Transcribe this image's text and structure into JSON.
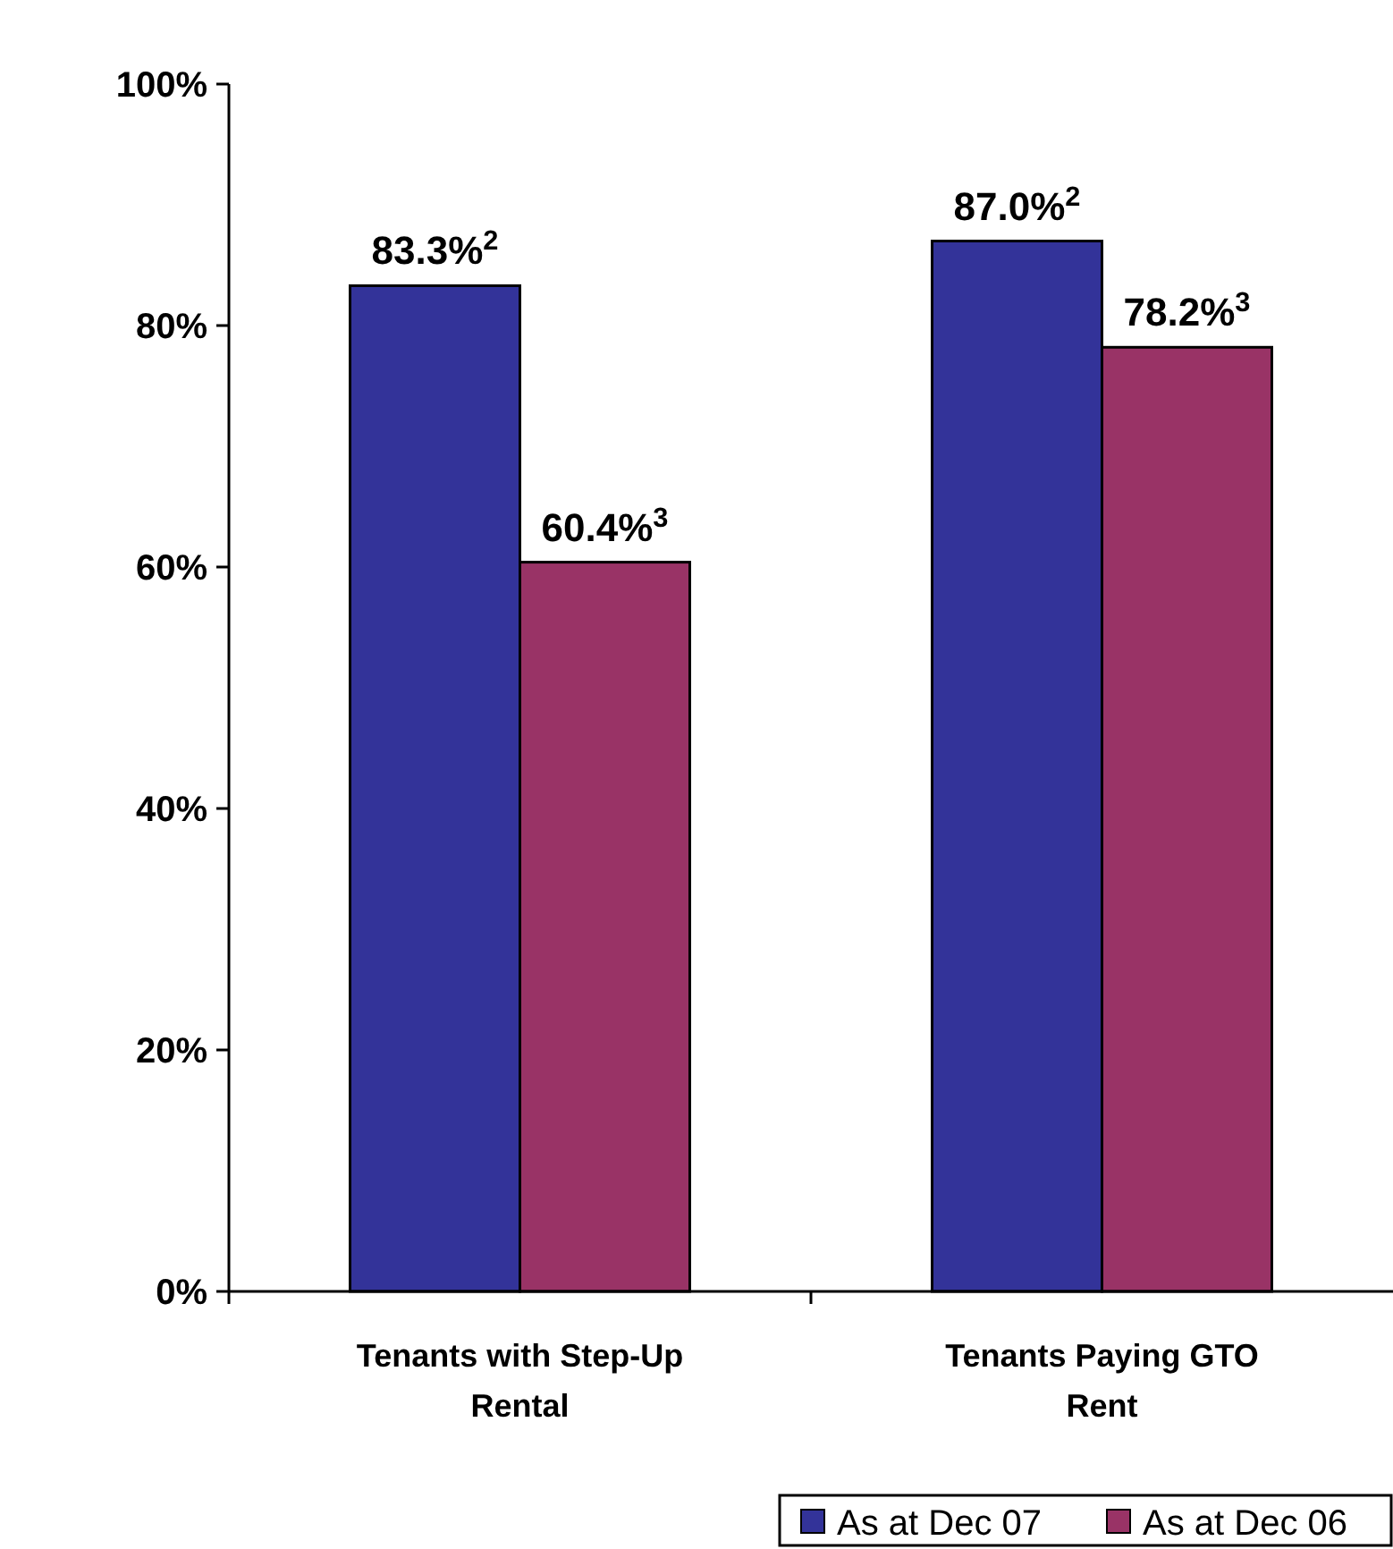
{
  "chart_data": {
    "type": "bar",
    "categories": [
      "Tenants with Step-Up Rental",
      "Tenants Paying GTO Rent"
    ],
    "series": [
      {
        "name": "As at Dec 07",
        "color": "#333399",
        "values": [
          83.3,
          87.0
        ],
        "value_labels": [
          "83.3%$^{2}$",
          "87.0%$^{2}$"
        ]
      },
      {
        "name": "As at Dec 06",
        "color": "#993366",
        "values": [
          60.4,
          78.2
        ],
        "value_labels": [
          "60.4%$^{3}$",
          "78.2%$^{3}$"
        ]
      }
    ],
    "ylim": [
      0,
      100
    ],
    "yticks": [
      {
        "value": 0,
        "label": "0%"
      },
      {
        "value": 20,
        "label": "20%"
      },
      {
        "value": 40,
        "label": "40%"
      },
      {
        "value": 60,
        "label": "60%"
      },
      {
        "value": 80,
        "label": "80%"
      },
      {
        "value": 100,
        "label": "100%"
      }
    ],
    "grid": false,
    "legend": "bottom right"
  }
}
